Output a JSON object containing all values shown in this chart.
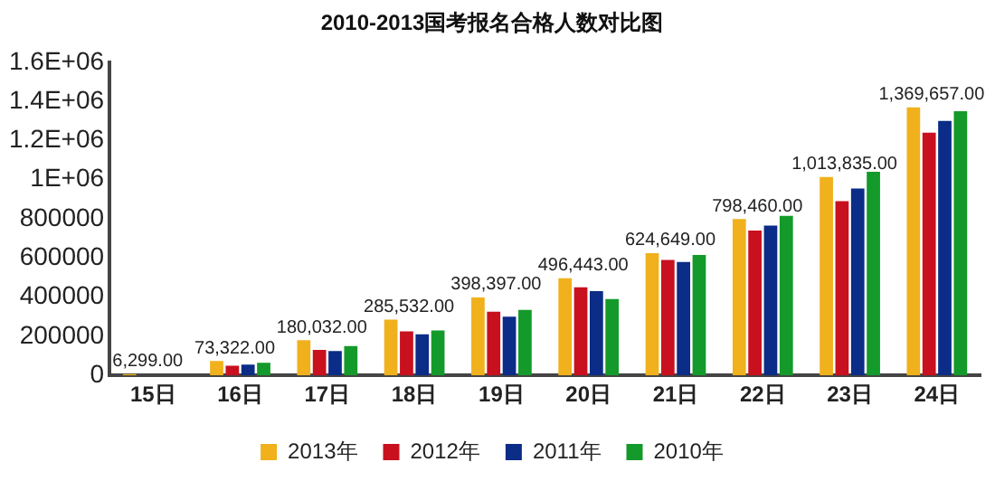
{
  "chart_data": {
    "type": "bar",
    "title": "2010-2013国考报名合格人数对比图",
    "categories": [
      "15日",
      "16日",
      "17日",
      "18日",
      "19日",
      "20日",
      "21日",
      "22日",
      "23日",
      "24日"
    ],
    "series": [
      {
        "name": "2013年",
        "color": "#f0b11d",
        "values": [
          6299,
          73322,
          180032,
          285532,
          398397,
          496443,
          624649,
          798460,
          1013835,
          1369657
        ],
        "value_labels": [
          "6,299.00",
          "73,322.00",
          "180,032.00",
          "285,532.00",
          "398,397.00",
          "496,443.00",
          "624,649.00",
          "798,460.00",
          "1,013,835.00",
          "1,369,657.00"
        ]
      },
      {
        "name": "2012年",
        "color": "#c8101e",
        "values": [
          null,
          50000,
          130000,
          225000,
          325000,
          450000,
          590000,
          740000,
          890000,
          1240000
        ]
      },
      {
        "name": "2011年",
        "color": "#0b2c87",
        "values": [
          null,
          55000,
          125000,
          210000,
          300000,
          430000,
          580000,
          765000,
          955000,
          1300000
        ]
      },
      {
        "name": "2010年",
        "color": "#139a2a",
        "values": [
          null,
          65000,
          150000,
          230000,
          335000,
          390000,
          615000,
          815000,
          1040000,
          1350000
        ]
      }
    ],
    "ylim": [
      0,
      1600000
    ],
    "yticks": [
      0,
      200000,
      400000,
      600000,
      800000,
      {
        "value": 1000000,
        "label": "1E+06"
      },
      {
        "value": 1200000,
        "label": "1.2E+06"
      },
      {
        "value": 1400000,
        "label": "1.4E+06"
      },
      {
        "value": 1600000,
        "label": "1.6E+06"
      }
    ],
    "grid": false,
    "legend": "bottom"
  }
}
